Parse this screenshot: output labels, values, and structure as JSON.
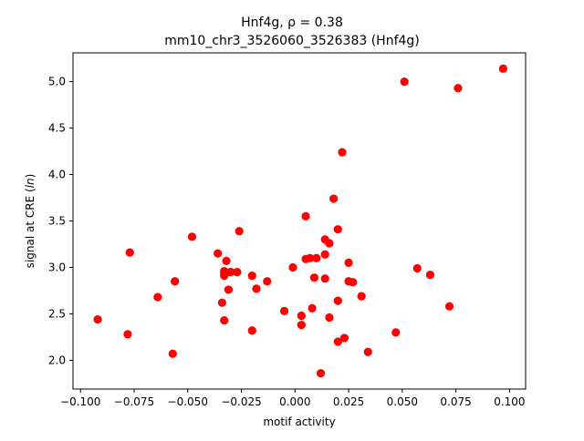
{
  "chart_data": {
    "type": "scatter",
    "title_line1": "Hnf4g, ρ = 0.38",
    "title_line2": "mm10_chr3_3526060_3526383 (Hnf4g)",
    "xlabel": "motif activity",
    "ylabel_prefix": "signal at CRE (",
    "ylabel_italic": "ln",
    "ylabel_suffix": ")",
    "xlim": [
      -0.1035,
      0.1075
    ],
    "ylim": [
      1.69,
      5.31
    ],
    "xticks": [
      -0.1,
      -0.075,
      -0.05,
      -0.025,
      0.0,
      0.025,
      0.05,
      0.075,
      0.1
    ],
    "xtick_labels": [
      "−0.100",
      "−0.075",
      "−0.050",
      "−0.025",
      "0.000",
      "0.025",
      "0.050",
      "0.075",
      "0.100"
    ],
    "yticks": [
      2.0,
      2.5,
      3.0,
      3.5,
      4.0,
      4.5,
      5.0
    ],
    "ytick_labels": [
      "2.0",
      "2.5",
      "3.0",
      "3.5",
      "4.0",
      "4.5",
      "5.0"
    ],
    "grid": false,
    "marker_color": "#ff0000",
    "points": [
      {
        "x": 0.097,
        "y": 5.14
      },
      {
        "x": 0.051,
        "y": 5.0
      },
      {
        "x": 0.076,
        "y": 4.93
      },
      {
        "x": 0.022,
        "y": 4.24
      },
      {
        "x": 0.018,
        "y": 3.74
      },
      {
        "x": 0.005,
        "y": 3.55
      },
      {
        "x": 0.02,
        "y": 3.41
      },
      {
        "x": -0.026,
        "y": 3.39
      },
      {
        "x": -0.048,
        "y": 3.33
      },
      {
        "x": 0.014,
        "y": 3.3
      },
      {
        "x": 0.016,
        "y": 3.26
      },
      {
        "x": -0.077,
        "y": 3.16
      },
      {
        "x": -0.036,
        "y": 3.15
      },
      {
        "x": 0.014,
        "y": 3.14
      },
      {
        "x": 0.007,
        "y": 3.1
      },
      {
        "x": 0.01,
        "y": 3.1
      },
      {
        "x": 0.005,
        "y": 3.09
      },
      {
        "x": -0.032,
        "y": 3.07
      },
      {
        "x": 0.025,
        "y": 3.05
      },
      {
        "x": -0.001,
        "y": 3.0
      },
      {
        "x": 0.057,
        "y": 2.99
      },
      {
        "x": -0.033,
        "y": 2.96
      },
      {
        "x": -0.03,
        "y": 2.95
      },
      {
        "x": -0.027,
        "y": 2.95
      },
      {
        "x": -0.033,
        "y": 2.93
      },
      {
        "x": 0.063,
        "y": 2.92
      },
      {
        "x": -0.02,
        "y": 2.91
      },
      {
        "x": -0.033,
        "y": 2.91
      },
      {
        "x": 0.009,
        "y": 2.89
      },
      {
        "x": 0.014,
        "y": 2.88
      },
      {
        "x": -0.056,
        "y": 2.85
      },
      {
        "x": -0.013,
        "y": 2.85
      },
      {
        "x": 0.025,
        "y": 2.85
      },
      {
        "x": 0.027,
        "y": 2.84
      },
      {
        "x": -0.018,
        "y": 2.77
      },
      {
        "x": -0.031,
        "y": 2.76
      },
      {
        "x": 0.031,
        "y": 2.69
      },
      {
        "x": -0.064,
        "y": 2.68
      },
      {
        "x": 0.02,
        "y": 2.64
      },
      {
        "x": -0.034,
        "y": 2.62
      },
      {
        "x": 0.072,
        "y": 2.58
      },
      {
        "x": 0.008,
        "y": 2.56
      },
      {
        "x": -0.005,
        "y": 2.53
      },
      {
        "x": 0.003,
        "y": 2.48
      },
      {
        "x": 0.016,
        "y": 2.46
      },
      {
        "x": -0.092,
        "y": 2.44
      },
      {
        "x": -0.033,
        "y": 2.43
      },
      {
        "x": 0.003,
        "y": 2.38
      },
      {
        "x": -0.02,
        "y": 2.32
      },
      {
        "x": 0.047,
        "y": 2.3
      },
      {
        "x": -0.078,
        "y": 2.28
      },
      {
        "x": 0.023,
        "y": 2.24
      },
      {
        "x": 0.02,
        "y": 2.2
      },
      {
        "x": 0.034,
        "y": 2.09
      },
      {
        "x": -0.057,
        "y": 2.07
      },
      {
        "x": 0.012,
        "y": 1.86
      }
    ]
  }
}
